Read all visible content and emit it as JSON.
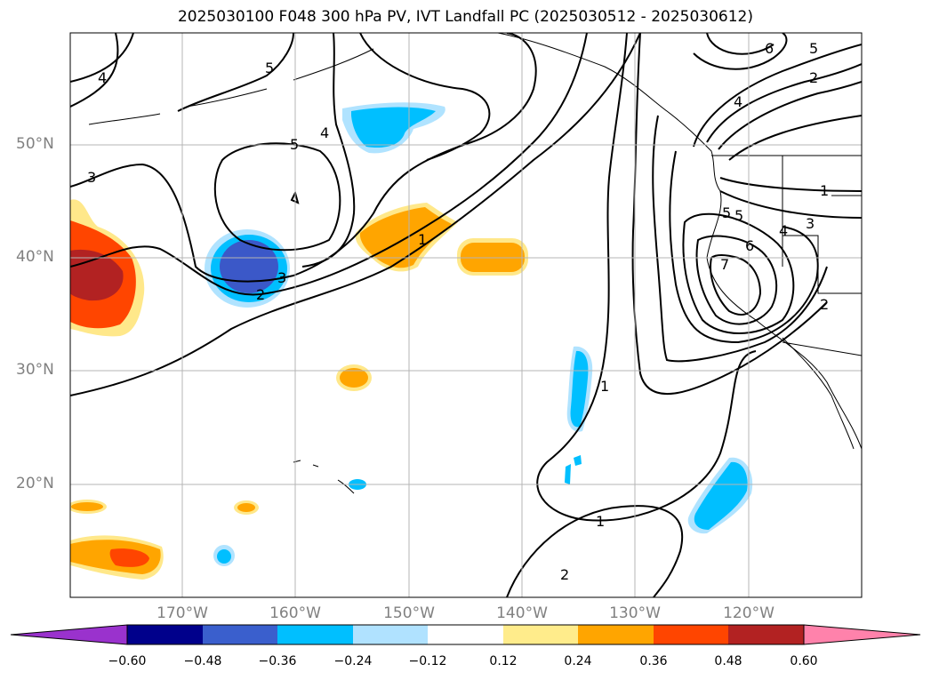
{
  "title": "2025030100 F048 300 hPa PV, IVT Landfall PC (2025030512 - 2025030612)",
  "map": {
    "lat_labels": [
      "50°N",
      "40°N",
      "30°N",
      "20°N"
    ],
    "lon_labels": [
      "170°W",
      "160°W",
      "150°W",
      "140°W",
      "130°W",
      "120°W"
    ],
    "contour_labels": [
      "4",
      "5",
      "3",
      "5",
      "4",
      "5",
      "3",
      "2",
      "1",
      "1",
      "1",
      "2",
      "6",
      "5",
      "2",
      "4",
      "1",
      "5",
      "3",
      "4",
      "6",
      "7",
      "2"
    ],
    "colors": {
      "blue_dark": "#3b58c8",
      "blue": "#00bfff",
      "blue_light": "#b0e3ff",
      "yellow": "#ffe88a",
      "orange": "#ffa500",
      "red_orange": "#ff4500",
      "dark_red": "#b22222"
    }
  },
  "colorbar": {
    "colors": [
      "#9a32cd",
      "#00008b",
      "#3a5fcd",
      "#00bfff",
      "#b0e2ff",
      "#ffffff",
      "#ffec8b",
      "#ffa500",
      "#ff4500",
      "#b22222",
      "#ff82ab"
    ],
    "ticks": [
      "−0.60",
      "−0.48",
      "−0.36",
      "−0.24",
      "−0.12",
      "0.12",
      "0.24",
      "0.36",
      "0.48",
      "0.60"
    ]
  }
}
